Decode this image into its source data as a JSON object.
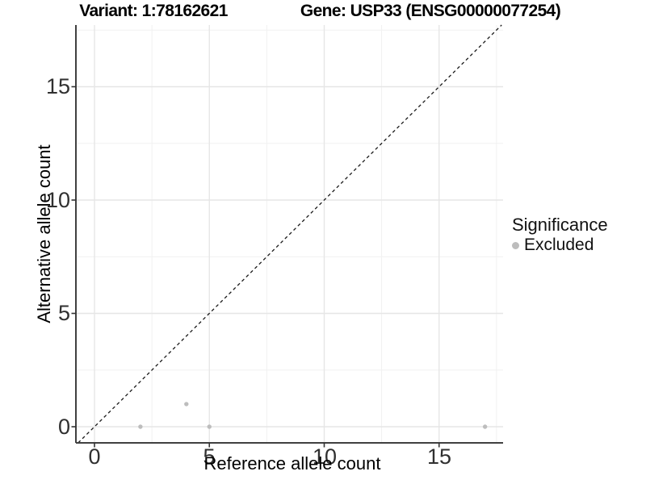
{
  "titles": {
    "variant": "Variant: 1:78162621",
    "gene": "Gene: USP33 (ENSG00000077254)"
  },
  "chart_data": {
    "type": "scatter",
    "title": "Variant: 1:78162621   Gene: USP33 (ENSG00000077254)",
    "xlabel": "Reference allele count",
    "ylabel": "Alternative allele count",
    "xlim": [
      -0.8,
      17.8
    ],
    "ylim": [
      -0.7,
      17.7
    ],
    "x_ticks": [
      0,
      5,
      10,
      15
    ],
    "y_ticks": [
      0,
      5,
      10,
      15
    ],
    "x_tick_labels": [
      "0",
      "5",
      "10",
      "15"
    ],
    "y_tick_labels": [
      "0",
      "5",
      "10",
      "15"
    ],
    "x_minor": [
      2.5,
      7.5,
      12.5,
      17.5
    ],
    "y_minor": [
      2.5,
      7.5,
      12.5,
      17.5
    ],
    "grid": "major+minor",
    "series": [
      {
        "name": "Excluded",
        "color": "#bdbdbd",
        "points": [
          [
            2,
            0
          ],
          [
            4,
            1
          ],
          [
            5,
            0
          ],
          [
            17,
            0
          ]
        ]
      }
    ],
    "reference_line": {
      "type": "identity y=x",
      "style": "dashed",
      "color": "#1a1a1a"
    },
    "legend": {
      "title": "Significance",
      "position": "right",
      "entries": [
        {
          "label": "Excluded",
          "color": "#bdbdbd"
        }
      ]
    },
    "colors": {
      "background": "#ffffff",
      "grid_major": "#e6e6e6",
      "grid_minor": "#f1f1f1",
      "axis_line": "#404040",
      "tick_mark": "#333333",
      "point": "#bdbdbd"
    }
  }
}
